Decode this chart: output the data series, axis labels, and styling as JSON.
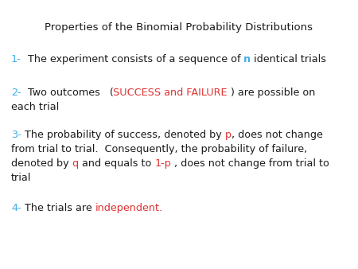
{
  "title": "Properties of the Binomial Probability Distributions",
  "background_color": "#ffffff",
  "blue_color": "#3daee9",
  "red_color": "#e03030",
  "black_color": "#1a1a1a",
  "figsize": [
    4.5,
    3.38
  ],
  "dpi": 100
}
